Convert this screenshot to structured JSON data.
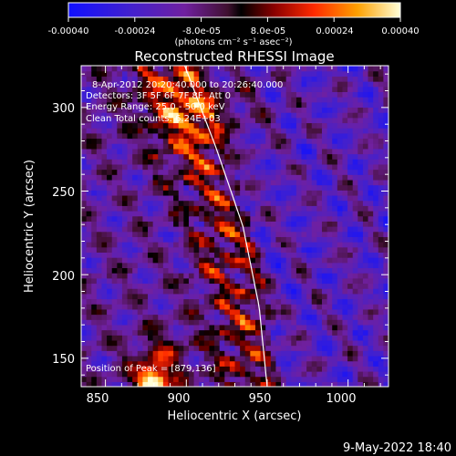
{
  "chart_data": {
    "type": "heatmap",
    "title": "Reconstructed RHESSI Image",
    "xlabel": "Heliocentric X (arcsec)",
    "ylabel": "Heliocentric Y (arcsec)",
    "xlim": [
      835,
      1025
    ],
    "ylim": [
      133,
      325
    ],
    "x_ticks": [
      "850",
      "900",
      "950",
      "1000"
    ],
    "y_ticks": [
      "150",
      "200",
      "250",
      "300"
    ],
    "colorbar": {
      "range": [
        -0.0004,
        0.0004
      ],
      "tick_labels": [
        "-0.00040",
        "-0.00024",
        "-8.0e-05",
        "8.0e-05",
        "0.00024",
        "0.00040"
      ],
      "units_label": "(photons cm⁻² s⁻¹ asec⁻²)"
    },
    "annotations": {
      "time": "8-Apr-2012 20:20:40.000 to 20:26:40.000",
      "detectors": "Detectors: 3F 5F 6F 7F 8F, Att 0",
      "energy": "Energy Range: 25.0 - 50.0 keV",
      "clean": "Clean     Total counts: 6.24E+03",
      "peak": "Position of Peak = [879,136]"
    },
    "peak": [
      879,
      136
    ],
    "limb_curve_x": [
      899,
      918,
      935,
      945,
      950
    ]
  },
  "footer_date": "9-May-2022 18:40"
}
